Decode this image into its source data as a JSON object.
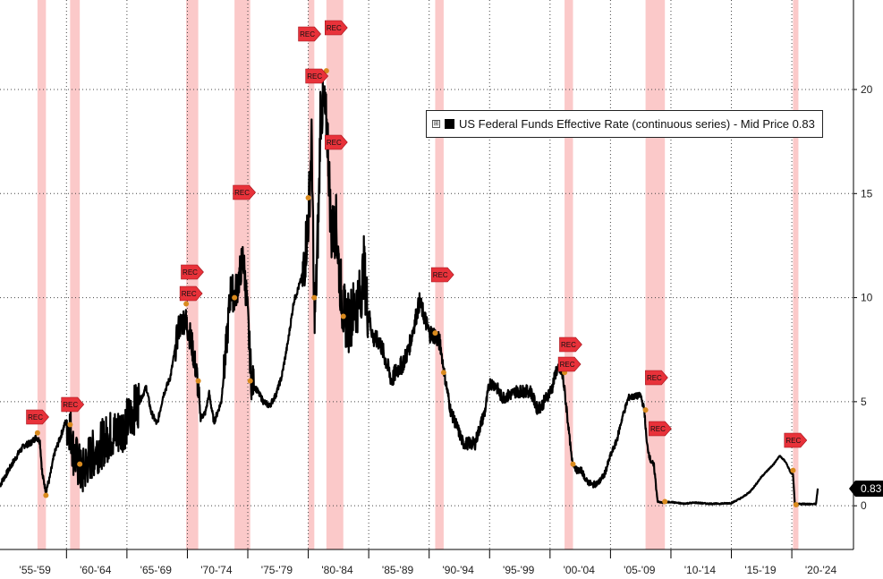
{
  "chart_data": {
    "type": "line",
    "title": "",
    "xlabel": "",
    "ylabel": "",
    "x_tick_labels": [
      "'55-'59",
      "'60-'64",
      "'65-'69",
      "'70-'74",
      "'75-'79",
      "'80-'84",
      "'85-'89",
      "'90-'94",
      "'95-'99",
      "'00-'04",
      "'05-'09",
      "'10-'14",
      "'15-'19",
      "'20-'24"
    ],
    "xlim": [
      1954.5,
      2025.1
    ],
    "ylim": [
      -2.1,
      24.3
    ],
    "y_ticks": [
      0,
      5,
      10,
      15,
      20
    ],
    "grid": true,
    "y_axis_side": "right",
    "legend": {
      "position": "top-right",
      "expand_glyph": "⊞",
      "label": "US Federal Funds Effective Rate (continuous series) - Mid Price 0.83"
    },
    "last_value_label": "0.83",
    "series": [
      {
        "name": "US Federal Funds Effective Rate (continuous series)",
        "color": "#000000",
        "x": [
          1954.5,
          1955.0,
          1955.5,
          1956.0,
          1956.5,
          1957.0,
          1957.5,
          1957.8,
          1958.0,
          1958.3,
          1958.6,
          1959.0,
          1959.5,
          1959.9,
          1960.3,
          1960.6,
          1960.9,
          1961.3,
          1961.8,
          1962.5,
          1963.0,
          1963.6,
          1964.2,
          1965.0,
          1965.6,
          1966.2,
          1966.6,
          1967.0,
          1967.5,
          1968.0,
          1968.6,
          1969.3,
          1969.8,
          1970.3,
          1970.8,
          1971.1,
          1971.5,
          1971.8,
          1972.2,
          1972.8,
          1973.2,
          1973.6,
          1973.9,
          1974.3,
          1974.6,
          1974.9,
          1975.3,
          1975.8,
          1976.3,
          1976.8,
          1977.3,
          1977.8,
          1978.3,
          1978.8,
          1979.2,
          1979.6,
          1980.0,
          1980.3,
          1980.45,
          1980.6,
          1980.9,
          1981.0,
          1981.3,
          1981.6,
          1981.9,
          1982.3,
          1982.6,
          1982.9,
          1983.3,
          1983.8,
          1984.3,
          1984.6,
          1984.9,
          1985.4,
          1985.9,
          1986.4,
          1986.9,
          1987.3,
          1987.8,
          1988.3,
          1988.8,
          1989.2,
          1989.6,
          1990.0,
          1990.5,
          1990.9,
          1991.3,
          1991.8,
          1992.3,
          1992.8,
          1993.3,
          1993.8,
          1994.2,
          1994.6,
          1995.0,
          1995.5,
          1996.0,
          1996.6,
          1997.2,
          1997.8,
          1998.4,
          1998.9,
          1999.3,
          1999.8,
          2000.2,
          2000.5,
          2000.9,
          2001.1,
          2001.4,
          2001.8,
          2002.2,
          2002.6,
          2003.0,
          2003.5,
          2004.0,
          2004.5,
          2005.0,
          2005.5,
          2006.0,
          2006.5,
          2007.0,
          2007.5,
          2007.8,
          2008.0,
          2008.3,
          2008.6,
          2008.9,
          2009.2,
          2010.0,
          2011.0,
          2012.0,
          2013.0,
          2014.0,
          2015.0,
          2015.9,
          2016.5,
          2017.0,
          2017.5,
          2018.0,
          2018.5,
          2019.0,
          2019.5,
          2019.9,
          2020.1,
          2020.25,
          2020.5,
          2021.0,
          2021.5,
          2022.0,
          2022.15
        ],
        "values": [
          1.0,
          1.5,
          2.0,
          2.5,
          2.9,
          3.0,
          3.3,
          3.1,
          1.5,
          0.7,
          1.3,
          2.5,
          3.3,
          4.0,
          3.8,
          2.5,
          2.1,
          1.5,
          2.2,
          2.7,
          3.0,
          3.4,
          3.5,
          4.0,
          4.6,
          5.2,
          5.7,
          4.5,
          3.9,
          5.3,
          6.2,
          8.6,
          9.0,
          8.0,
          6.2,
          4.2,
          4.5,
          5.4,
          4.0,
          5.0,
          7.5,
          10.5,
          10.0,
          11.0,
          12.0,
          10.0,
          6.0,
          5.5,
          5.0,
          4.8,
          5.3,
          6.2,
          7.8,
          9.8,
          10.5,
          11.2,
          13.8,
          17.6,
          10.0,
          9.5,
          15.0,
          19.0,
          19.1,
          17.8,
          13.0,
          13.5,
          11.0,
          9.3,
          8.8,
          9.5,
          10.0,
          11.5,
          9.5,
          8.0,
          7.9,
          7.0,
          6.0,
          6.5,
          6.8,
          7.5,
          8.8,
          9.8,
          9.1,
          8.3,
          8.2,
          7.8,
          6.2,
          4.5,
          3.8,
          3.0,
          3.0,
          3.0,
          3.8,
          4.5,
          5.9,
          5.8,
          5.2,
          5.3,
          5.5,
          5.5,
          5.5,
          4.7,
          4.8,
          5.3,
          5.7,
          6.5,
          6.5,
          6.0,
          4.5,
          2.2,
          1.7,
          1.7,
          1.2,
          1.0,
          1.1,
          1.5,
          2.4,
          3.1,
          4.3,
          5.2,
          5.25,
          5.3,
          4.6,
          3.0,
          2.2,
          1.9,
          0.2,
          0.15,
          0.18,
          0.1,
          0.15,
          0.1,
          0.1,
          0.13,
          0.4,
          0.65,
          1.0,
          1.4,
          1.7,
          2.0,
          2.4,
          2.1,
          1.6,
          1.5,
          0.07,
          0.08,
          0.09,
          0.08,
          0.08,
          0.83
        ]
      }
    ],
    "recessions": [
      {
        "start": 1957.6,
        "end": 1958.3
      },
      {
        "start": 1960.3,
        "end": 1961.1
      },
      {
        "start": 1969.9,
        "end": 1970.9
      },
      {
        "start": 1973.9,
        "end": 1975.2
      },
      {
        "start": 1980.0,
        "end": 1980.5
      },
      {
        "start": 1981.5,
        "end": 1982.9
      },
      {
        "start": 1990.5,
        "end": 1991.2
      },
      {
        "start": 2001.2,
        "end": 2001.9
      },
      {
        "start": 2007.9,
        "end": 2009.5
      },
      {
        "start": 2020.1,
        "end": 2020.35
      }
    ],
    "rec_markers": [
      {
        "text": "REC",
        "x": 1957.6,
        "y": 3.5
      },
      {
        "text": "REC",
        "x": 1958.3,
        "y": 0.5
      },
      {
        "text": "REC",
        "x": 1960.3,
        "y": 3.9
      },
      {
        "text": "REC",
        "x": 1961.1,
        "y": 2.0
      },
      {
        "text": "REC",
        "x": 1969.9,
        "y": 9.7
      },
      {
        "text": "REC",
        "x": 1970.9,
        "y": 6.0
      },
      {
        "text": "REC",
        "x": 1973.9,
        "y": 10.0
      },
      {
        "text": "REC",
        "x": 1975.2,
        "y": 6.0
      },
      {
        "text": "REC",
        "x": 1980.0,
        "y": 14.8
      },
      {
        "text": "REC",
        "x": 1980.5,
        "y": 10.0
      },
      {
        "text": "REC",
        "x": 1981.5,
        "y": 20.9
      },
      {
        "text": "REC",
        "x": 1982.9,
        "y": 9.1
      },
      {
        "text": "REC",
        "x": 1990.5,
        "y": 8.3
      },
      {
        "text": "REC",
        "x": 1991.2,
        "y": 6.4
      },
      {
        "text": "REC",
        "x": 2001.2,
        "y": 6.4
      },
      {
        "text": "REC",
        "x": 2001.9,
        "y": 2.0
      },
      {
        "text": "REC",
        "x": 2007.9,
        "y": 4.6
      },
      {
        "text": "REC",
        "x": 2009.5,
        "y": 0.2
      },
      {
        "text": "REC",
        "x": 2020.1,
        "y": 1.7
      },
      {
        "text": "REC",
        "x": 2020.35,
        "y": 0.05
      }
    ],
    "rec_tags": [
      {
        "text": "REC",
        "x": 1957.5
      },
      {
        "text": "REC",
        "x": 1960.4
      },
      {
        "text": "REC",
        "x": 1970.3
      },
      {
        "text": "REC",
        "x": 1970.2
      },
      {
        "text": "REC",
        "x": 1974.6
      },
      {
        "text": "REC",
        "x": 1980.0
      },
      {
        "text": "REC",
        "x": 1980.6
      },
      {
        "text": "REC",
        "x": 1982.2
      },
      {
        "text": "REC",
        "x": 1982.2
      },
      {
        "text": "REC",
        "x": 1991.0
      },
      {
        "text": "REC",
        "x": 2001.6
      },
      {
        "text": "REC",
        "x": 2001.5
      },
      {
        "text": "REC",
        "x": 2008.7
      },
      {
        "text": "REC",
        "x": 2009.0
      },
      {
        "text": "REC",
        "x": 2020.2
      }
    ],
    "colors": {
      "recession_band": "#fbc9c9",
      "recession_marker": "#e8323a",
      "point_marker": "#d98a1e",
      "grid": "#444444"
    }
  }
}
